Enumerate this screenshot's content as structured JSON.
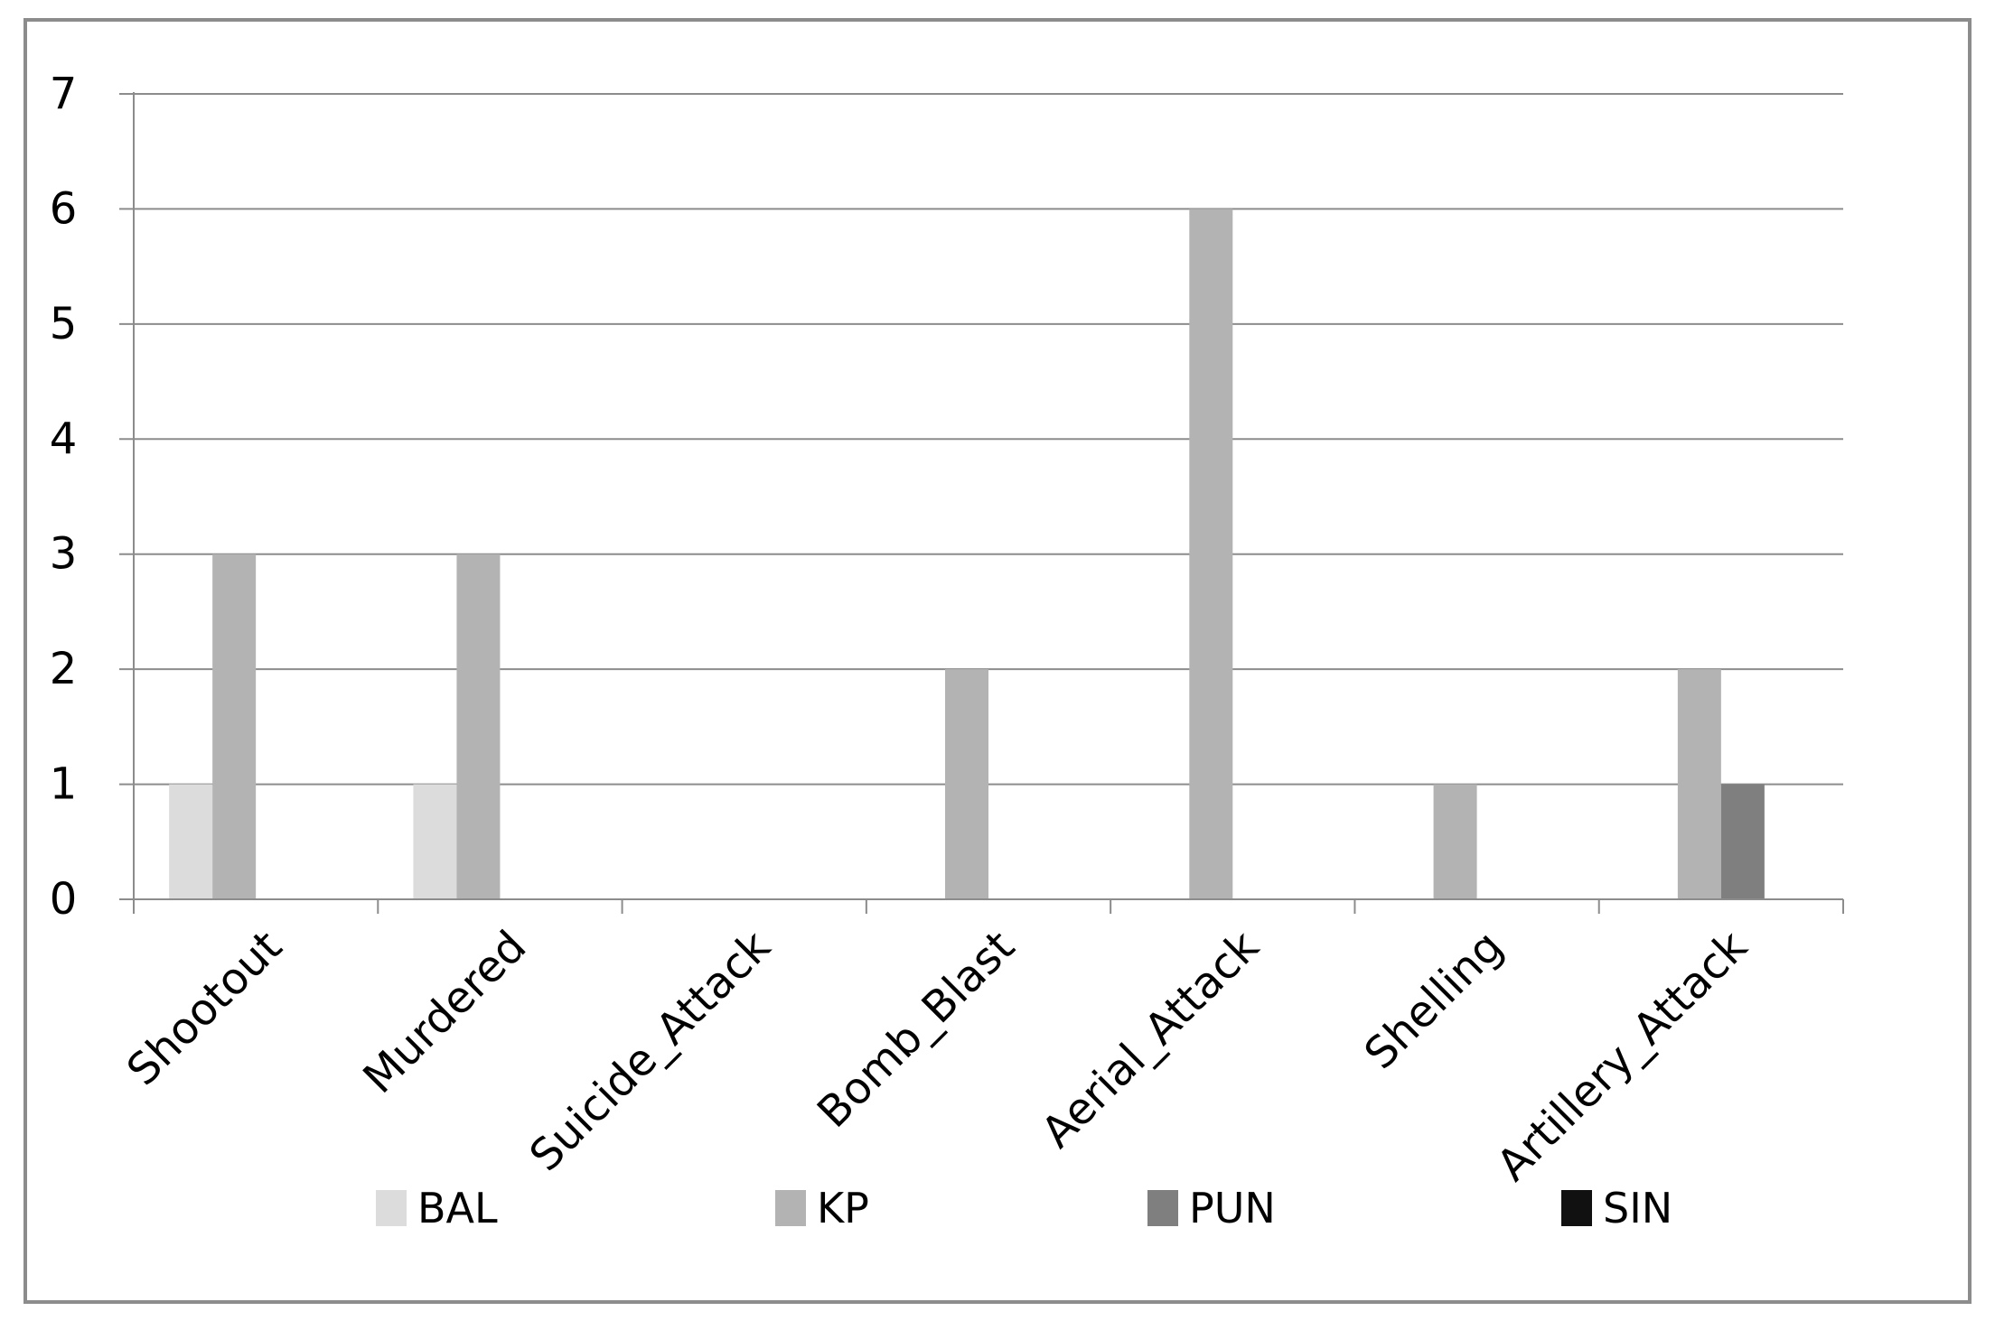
{
  "chart_data": {
    "type": "bar",
    "categories": [
      "Shootout",
      "Murdered",
      "Suicide_Attack",
      "Bomb_Blast",
      "Aerial_Attack",
      "Shelling",
      "Artillery_Attack"
    ],
    "series": [
      {
        "name": "BAL",
        "color": "#dcdcdc",
        "values": [
          1,
          1,
          0,
          0,
          0,
          0,
          0
        ]
      },
      {
        "name": "KP",
        "color": "#b3b3b3",
        "values": [
          3,
          3,
          0,
          2,
          6,
          1,
          2
        ]
      },
      {
        "name": "PUN",
        "color": "#7f7f7f",
        "values": [
          0,
          0,
          0,
          0,
          0,
          0,
          1
        ]
      },
      {
        "name": "SIN",
        "color": "#111111",
        "values": [
          0,
          0,
          0,
          0,
          0,
          0,
          0
        ]
      }
    ],
    "y_ticks": [
      "0",
      "1",
      "2",
      "3",
      "4",
      "5",
      "6",
      "7"
    ],
    "ylim": [
      0,
      7
    ],
    "grid": true,
    "legend_position": "bottom",
    "title": "",
    "xlabel": "",
    "ylabel": ""
  }
}
